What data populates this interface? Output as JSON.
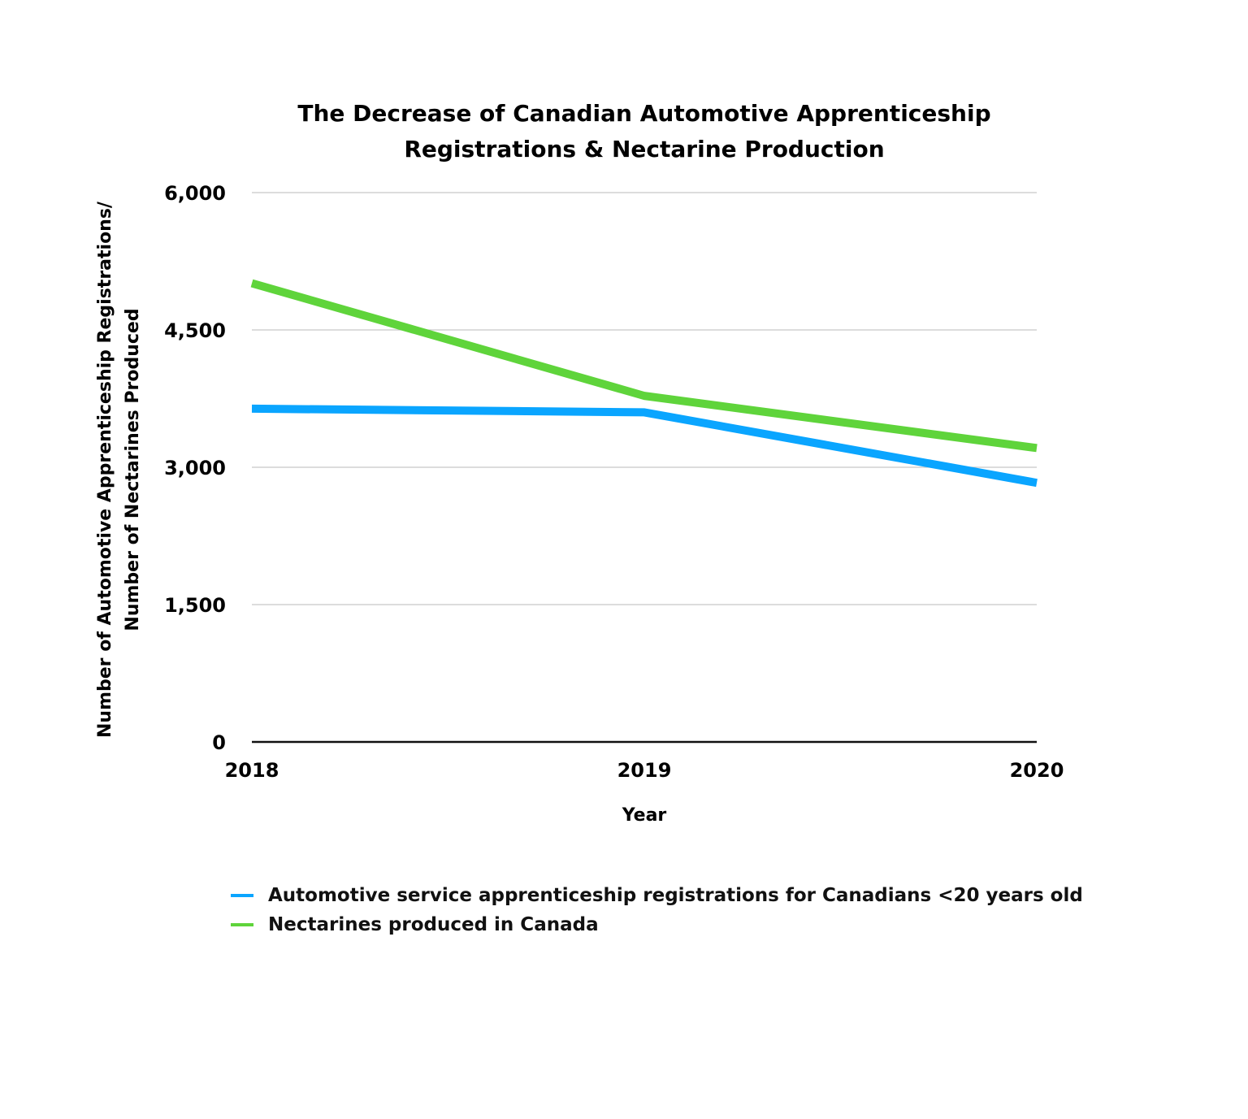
{
  "chart_data": {
    "type": "line",
    "title": [
      "The Decrease of Canadian Automotive Apprenticeship",
      "Registrations & Nectarine Production"
    ],
    "xlabel": "Year",
    "ylabel": [
      "Number of Automotive Apprenticeship Registrations/",
      "Number of Nectarines Produced"
    ],
    "x": [
      "2018",
      "2019",
      "2020"
    ],
    "ylim": [
      0,
      6000
    ],
    "yticks": [
      0,
      1500,
      3000,
      4500,
      6000
    ],
    "ytick_labels": [
      "0",
      "1,500",
      "3,000",
      "4,500",
      "6,000"
    ],
    "grid": true,
    "legend_position": "bottom",
    "series": [
      {
        "name": "Automotive service apprenticeship registrations for Canadians <20 years old",
        "color": "#0aa5ff",
        "values": [
          3640,
          3600,
          2830
        ]
      },
      {
        "name": "Nectarines produced in Canada",
        "color": "#5fd43b",
        "values": [
          5010,
          3780,
          3210
        ]
      }
    ]
  }
}
